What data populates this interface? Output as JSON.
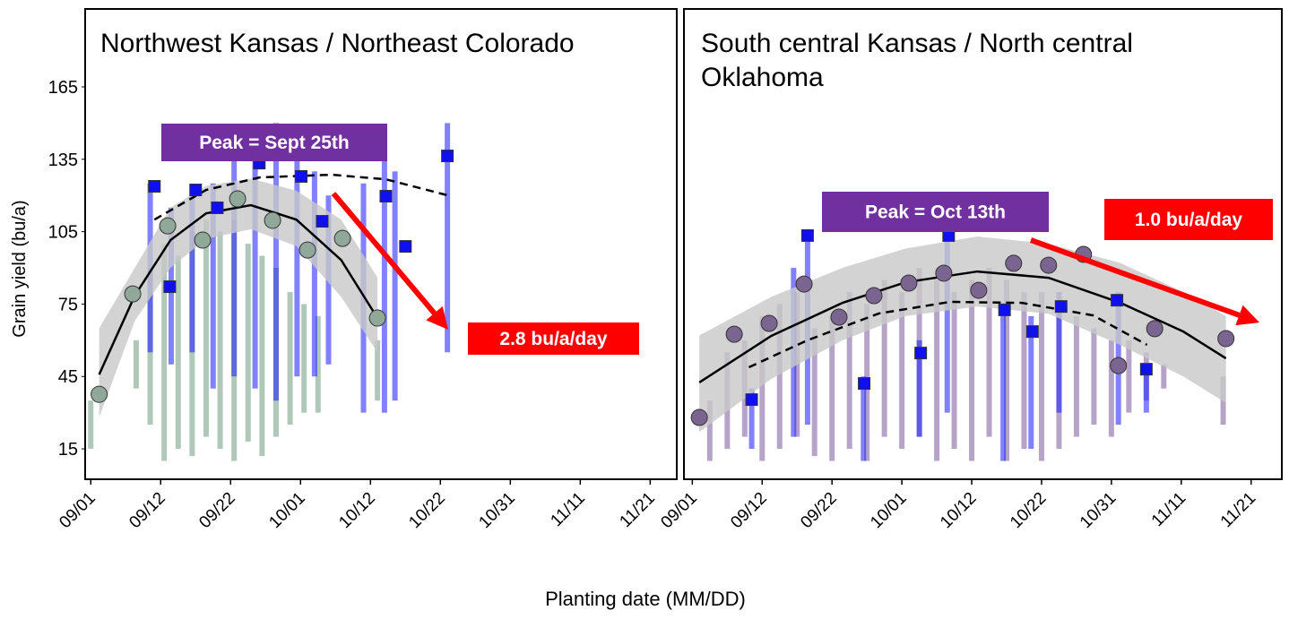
{
  "chart_data": [
    {
      "type": "scatter",
      "title": "Northwest Kansas / Northeast Colorado",
      "ylabel": "Grain yield (bu/a)",
      "xlabel": "Planting date (MM/DD)",
      "xlim": [
        -0.08,
        8.38
      ],
      "ylim": [
        2.4,
        197.3
      ],
      "xticks": [
        {
          "value": 0,
          "label": "09/01"
        },
        {
          "value": 1,
          "label": "09/12"
        },
        {
          "value": 2,
          "label": "09/22"
        },
        {
          "value": 3,
          "label": "10/01"
        },
        {
          "value": 4,
          "label": "10/12"
        },
        {
          "value": 5,
          "label": "10/22"
        },
        {
          "value": 6,
          "label": "10/31"
        },
        {
          "value": 7,
          "label": "11/11"
        },
        {
          "value": 8,
          "label": "11/21"
        }
      ],
      "yticks": [
        15,
        45,
        75,
        105,
        135,
        165
      ],
      "annotations": [
        {
          "text": "Peak = Sept 25th",
          "color": "#7030a0"
        },
        {
          "text": "2.8 bu/a/day",
          "color": "#ff0000"
        }
      ],
      "strips": [
        {
          "color": "#6f9a80",
          "x": [
            0,
            0.65,
            0.85,
            1.05,
            1.25,
            1.45,
            1.65,
            1.85,
            2.05,
            2.25,
            2.45,
            2.65,
            2.85,
            3.05,
            3.25,
            4.1
          ],
          "low": [
            15,
            40,
            25,
            10,
            15,
            12,
            20,
            15,
            10,
            18,
            12,
            20,
            25,
            30,
            30,
            35
          ],
          "high": [
            35,
            60,
            90,
            100,
            95,
            105,
            110,
            105,
            110,
            100,
            95,
            90,
            80,
            75,
            70,
            60
          ]
        },
        {
          "color": "#1a1aff",
          "x": [
            0.85,
            1.15,
            1.45,
            1.75,
            2.05,
            2.35,
            2.65,
            2.95,
            3.2,
            3.4,
            3.9,
            4.2,
            4.35,
            5.1
          ],
          "low": [
            55,
            50,
            55,
            40,
            45,
            40,
            35,
            45,
            45,
            50,
            30,
            30,
            35,
            55
          ],
          "high": [
            125,
            115,
            120,
            125,
            140,
            145,
            150,
            140,
            130,
            120,
            125,
            135,
            130,
            150
          ]
        }
      ],
      "band": {
        "color": "#c8c8c8",
        "x": [
          0.12,
          0.63,
          1.14,
          1.65,
          2.29,
          2.94,
          3.58,
          4.1
        ],
        "upper": [
          65,
          90,
          115,
          124,
          127,
          122,
          110,
          86
        ],
        "lower": [
          28,
          68,
          90,
          102,
          106,
          99,
          78,
          55
        ]
      },
      "series": [
        {
          "marker": "circle",
          "color": "#8fa89a",
          "x": [
            0.12,
            0.6,
            1.1,
            1.6,
            2.1,
            2.6,
            3.1,
            3.6,
            4.1
          ],
          "values": [
            37.6,
            79.2,
            107.4,
            101.5,
            118.6,
            109.7,
            97.4,
            102.2,
            69.2
          ]
        },
        {
          "marker": "square",
          "color": "#1010ee",
          "x": [
            0.91,
            1.13,
            1.5,
            1.81,
            2.41,
            3.01,
            3.31,
            4.22,
            4.5,
            5.1
          ],
          "values": [
            123.8,
            82.2,
            122.3,
            114.9,
            133.4,
            127.9,
            109.3,
            119.7,
            98.9,
            136.4
          ]
        },
        {
          "line": "solid",
          "color": "#000000",
          "x": [
            0.12,
            0.63,
            1.14,
            1.65,
            2.29,
            2.94,
            3.58,
            4.1
          ],
          "values": [
            45.8,
            78.5,
            101.5,
            112.6,
            116.0,
            110.0,
            93.3,
            69.2
          ]
        },
        {
          "line": "dashed",
          "color": "#000000",
          "x": [
            0.91,
            1.65,
            2.42,
            3.45,
            4.22,
            5.1
          ],
          "values": [
            110.0,
            122.3,
            127.5,
            128.6,
            126.7,
            120.1
          ]
        }
      ]
    },
    {
      "type": "scatter",
      "title": "South central Kansas / North central Oklahoma",
      "xlim": [
        -0.12,
        8.44
      ],
      "ylim": [
        2.4,
        197.3
      ],
      "xticks": [
        {
          "value": 0,
          "label": "09/01"
        },
        {
          "value": 1,
          "label": "09/12"
        },
        {
          "value": 2,
          "label": "09/22"
        },
        {
          "value": 3,
          "label": "10/01"
        },
        {
          "value": 4,
          "label": "10/12"
        },
        {
          "value": 5,
          "label": "10/22"
        },
        {
          "value": 6,
          "label": "10/31"
        },
        {
          "value": 7,
          "label": "11/11"
        },
        {
          "value": 8,
          "label": "11/21"
        }
      ],
      "annotations": [
        {
          "text": "Peak = Oct 13th",
          "color": "#7030a0"
        },
        {
          "text": "1.0 bu/a/day",
          "color": "#ff0000"
        }
      ],
      "strips": [
        {
          "color": "#7a5a9a",
          "x": [
            0.25,
            0.5,
            0.75,
            1.0,
            1.25,
            1.5,
            1.75,
            2.0,
            2.25,
            2.5,
            2.75,
            3.0,
            3.25,
            3.5,
            3.75,
            4.0,
            4.25,
            4.5,
            4.75,
            5.0,
            5.25,
            5.5,
            5.75,
            6.0,
            6.25,
            6.5,
            6.75,
            7.6
          ],
          "low": [
            10,
            15,
            20,
            10,
            15,
            20,
            12,
            10,
            15,
            10,
            20,
            15,
            20,
            10,
            15,
            10,
            20,
            10,
            15,
            10,
            15,
            20,
            25,
            20,
            30,
            35,
            40,
            25
          ],
          "high": [
            35,
            55,
            60,
            70,
            75,
            80,
            65,
            70,
            80,
            75,
            85,
            80,
            90,
            85,
            80,
            85,
            90,
            85,
            80,
            80,
            75,
            70,
            65,
            60,
            60,
            55,
            50,
            45
          ]
        },
        {
          "color": "#1a1aff",
          "x": [
            0.85,
            1.45,
            1.65,
            2.45,
            3.25,
            3.65,
            4.45,
            4.85,
            5.25,
            6.1,
            6.5
          ],
          "low": [
            15,
            20,
            25,
            10,
            20,
            30,
            10,
            15,
            30,
            25,
            30
          ],
          "high": [
            40,
            90,
            105,
            45,
            60,
            105,
            75,
            70,
            80,
            80,
            50
          ]
        }
      ],
      "band": {
        "color": "#c8c8c8",
        "x": [
          0.1,
          1.13,
          2.15,
          3.05,
          4.08,
          5.1,
          6.13,
          7.03,
          7.64
        ],
        "upper": [
          62,
          78,
          90,
          98,
          103,
          100,
          92,
          80,
          70
        ],
        "lower": [
          22,
          44,
          60,
          70,
          74,
          71,
          58,
          45,
          34
        ]
      },
      "series": [
        {
          "marker": "circle",
          "color": "#7a6590",
          "x": [
            0.1,
            0.6,
            1.1,
            1.6,
            2.1,
            2.6,
            3.1,
            3.6,
            4.1,
            4.6,
            5.1,
            5.6,
            6.1,
            6.62,
            7.64
          ],
          "values": [
            28.0,
            62.5,
            67.0,
            83.3,
            69.6,
            78.5,
            83.7,
            87.8,
            80.7,
            91.9,
            91.1,
            95.6,
            49.5,
            64.8,
            60.7
          ]
        },
        {
          "marker": "square",
          "color": "#1010ee",
          "x": [
            0.85,
            1.65,
            2.46,
            3.27,
            3.67,
            4.47,
            4.87,
            5.28,
            6.08,
            6.5
          ],
          "values": [
            35.4,
            103.4,
            42.1,
            54.7,
            103.4,
            72.6,
            63.6,
            74.0,
            76.6,
            48.0
          ]
        },
        {
          "line": "solid",
          "color": "#000000",
          "x": [
            0.1,
            1.13,
            2.15,
            3.05,
            4.08,
            5.1,
            6.13,
            7.03,
            7.64
          ],
          "values": [
            42.5,
            61.8,
            75.5,
            84.0,
            88.5,
            85.9,
            75.5,
            63.6,
            52.5
          ]
        },
        {
          "line": "dashed",
          "color": "#000000",
          "x": [
            0.81,
            1.64,
            2.67,
            3.69,
            4.72,
            5.74,
            6.51
          ],
          "values": [
            48.8,
            59.9,
            71.1,
            75.9,
            75.5,
            70.3,
            58.1
          ]
        }
      ]
    }
  ]
}
